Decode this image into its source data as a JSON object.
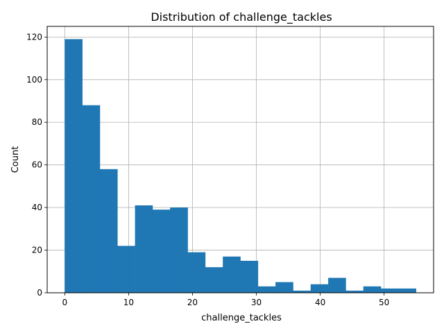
{
  "chart_data": {
    "type": "bar",
    "title": "Distribution of challenge_tackles",
    "xlabel": "challenge_tackles",
    "ylabel": "Count",
    "xlim": [
      -2.75,
      57.75
    ],
    "ylim": [
      0,
      125
    ],
    "grid": true,
    "bar_color": "#1f77b4",
    "x_ticks": [
      0,
      10,
      20,
      30,
      40,
      50
    ],
    "y_ticks": [
      0,
      20,
      40,
      60,
      80,
      100,
      120
    ],
    "bin_width": 2.75,
    "bins": [
      {
        "start": 0.0,
        "count": 119
      },
      {
        "start": 2.75,
        "count": 88
      },
      {
        "start": 5.5,
        "count": 58
      },
      {
        "start": 8.25,
        "count": 22
      },
      {
        "start": 11.0,
        "count": 41
      },
      {
        "start": 13.75,
        "count": 39
      },
      {
        "start": 16.5,
        "count": 40
      },
      {
        "start": 19.25,
        "count": 19
      },
      {
        "start": 22.0,
        "count": 12
      },
      {
        "start": 24.75,
        "count": 17
      },
      {
        "start": 27.5,
        "count": 15
      },
      {
        "start": 30.25,
        "count": 3
      },
      {
        "start": 33.0,
        "count": 5
      },
      {
        "start": 35.75,
        "count": 1
      },
      {
        "start": 38.5,
        "count": 4
      },
      {
        "start": 41.25,
        "count": 7
      },
      {
        "start": 44.0,
        "count": 1
      },
      {
        "start": 46.75,
        "count": 3
      },
      {
        "start": 49.5,
        "count": 2
      },
      {
        "start": 52.25,
        "count": 2
      }
    ]
  }
}
